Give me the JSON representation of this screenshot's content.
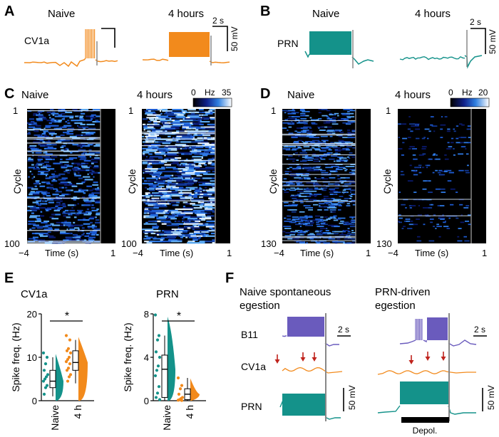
{
  "panels": {
    "A": {
      "letter": "A",
      "cond_naive": "Naive",
      "cond_4h": "4 hours",
      "cell": "CV1a",
      "scale_time": "2 s",
      "scale_volt": "50 mV",
      "color": "#f28a1c"
    },
    "B": {
      "letter": "B",
      "cond_naive": "Naive",
      "cond_4h": "4 hours",
      "cell": "PRN",
      "scale_time": "2 s",
      "scale_volt": "50 mV",
      "color": "#14928a"
    },
    "C": {
      "letter": "C",
      "cond_naive": "Naive",
      "cond_4h": "4 hours",
      "ylabel": "Cycle",
      "xlabel": "Time (s)",
      "y_top": "1",
      "y_bottom": "100",
      "x_left": "−4",
      "x_right": "1",
      "cbar_min": "0",
      "cbar_unit": "Hz",
      "cbar_max": "35"
    },
    "D": {
      "letter": "D",
      "cond_naive": "Naive",
      "cond_4h": "4 hours",
      "ylabel": "Cycle",
      "xlabel": "Time (s)",
      "y_top": "1",
      "y_bottom": "130",
      "x_left": "−4",
      "x_right": "1",
      "cbar_min": "0",
      "cbar_unit": "Hz",
      "cbar_max": "20"
    },
    "E": {
      "letter": "E",
      "sig": "*"
    },
    "F": {
      "letter": "F",
      "title_left_1": "Naive spontaneous",
      "title_left_2": "egestion",
      "title_right_1": "PRN-driven",
      "title_right_2": "egestion",
      "row_b11": "B11",
      "row_cv1a": "CV1a",
      "row_prn": "PRN",
      "scale_time": "2 s",
      "scale_volt": "50 mV",
      "depol": "Depol.",
      "b11_color": "#6a5bbd",
      "cv1a_color": "#f28a1c",
      "prn_color": "#14928a",
      "arrow_color": "#c0231c"
    }
  },
  "chart_data": [
    {
      "type": "scatter",
      "title": "CV1a",
      "ylabel": "Spike freq. (Hz)",
      "categories": [
        "Naive",
        "4 h"
      ],
      "ylim": [
        0,
        20
      ],
      "yticks": [
        "0",
        "10",
        "20"
      ],
      "significance": "*",
      "series": [
        {
          "name": "Naive",
          "color": "#14928a",
          "median": 4.5,
          "q1": 3,
          "q3": 7,
          "min": 1,
          "max": 10,
          "points": [
            11,
            10,
            8.5,
            7,
            6,
            5.5,
            5,
            4.5,
            3.5,
            3,
            1.5
          ]
        },
        {
          "name": "4 h",
          "color": "#f28a1c",
          "median": 8.8,
          "q1": 7,
          "q3": 11.5,
          "min": 4,
          "max": 14,
          "points": [
            15,
            14,
            12,
            11.5,
            11,
            10,
            9.5,
            9,
            8.5,
            7.5,
            7,
            6,
            5.5,
            4.5
          ]
        }
      ]
    },
    {
      "type": "scatter",
      "title": "PRN",
      "ylabel": "Spike freq. (Hz)",
      "categories": [
        "Naive",
        "4 h"
      ],
      "ylim": [
        0,
        8
      ],
      "yticks": [
        "0",
        "4",
        "8"
      ],
      "significance": "*",
      "series": [
        {
          "name": "Naive",
          "color": "#14928a",
          "median": 2.9,
          "q1": 0.3,
          "q3": 4.2,
          "min": 0,
          "max": 6,
          "points": [
            7.9,
            6,
            5.6,
            4.5,
            4,
            3.2,
            2.8,
            2.3,
            1.3,
            0.7,
            0.3,
            0.1
          ]
        },
        {
          "name": "4 h",
          "color": "#f28a1c",
          "median": 0.6,
          "q1": 0.1,
          "q3": 1.1,
          "min": 0,
          "max": 2.1,
          "points": [
            2.1,
            1.4,
            1.1,
            0.6,
            0.3,
            0.2,
            0.1,
            0.05,
            0.02
          ]
        }
      ]
    }
  ]
}
